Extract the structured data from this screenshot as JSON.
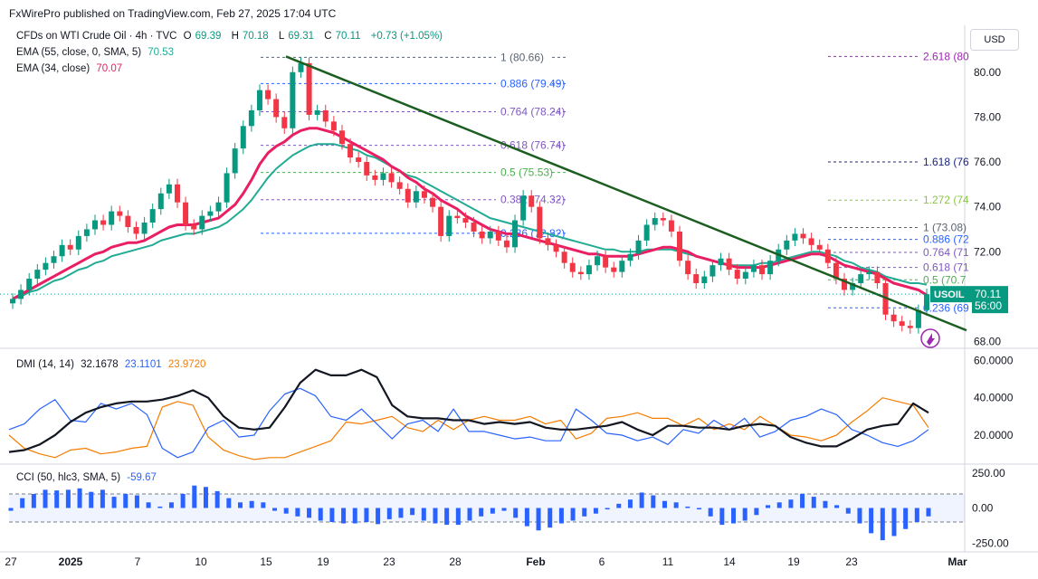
{
  "header": {
    "published": "FxWirePro published on TradingView.com, Feb 27, 2025 17:04 UTC"
  },
  "legend": {
    "symbol": "CFDs on WTI Crude Oil · 4h · TVC",
    "o_label": "O",
    "o": "69.39",
    "h_label": "H",
    "h": "70.18",
    "l_label": "L",
    "l": "69.31",
    "c_label": "C",
    "c": "70.11",
    "change": "+0.73 (+1.05%)",
    "ema55_label": "EMA (55, close, 0, SMA, 5)",
    "ema55": "70.53",
    "ema34_label": "EMA (34, close)",
    "ema34": "70.07",
    "dmi_label": "DMI (14, 14)",
    "dmi_adx": "32.1678",
    "dmi_plus": "23.1101",
    "dmi_minus": "23.9720",
    "cci_label": "CCI (50, hlc3, SMA, 5)",
    "cci": "-59.67"
  },
  "currency": "USD",
  "price_tag": {
    "symbol": "USOIL",
    "price": "70.11",
    "countdown": "56:00"
  },
  "colors": {
    "up": "#089981",
    "down": "#f23645",
    "ema34": "#e91e63",
    "ema55": "#22ab94",
    "trend": "#1b5e20",
    "adx": "#131722",
    "plus": "#2962ff",
    "minus": "#f57c00",
    "cci": "#2962ff",
    "axis": "#131722",
    "grid": "#e0e3eb"
  },
  "chart_data": {
    "type": "candlestick",
    "timeframe": "4h",
    "price_axis_ticks": [
      "80.00",
      "78.00",
      "76.00",
      "74.00",
      "72.00",
      "70.00",
      "68.00"
    ],
    "price_range": [
      67.9,
      81.2
    ],
    "time_axis_labels": [
      "27",
      "2025",
      "7",
      "10",
      "15",
      "19",
      "23",
      "28",
      "Feb",
      "6",
      "11",
      "14",
      "19",
      "23",
      "Mar"
    ],
    "close_series": [
      69.9,
      70.3,
      70.8,
      71.2,
      71.5,
      71.8,
      72.3,
      72.1,
      72.7,
      73.0,
      73.4,
      73.2,
      73.8,
      73.6,
      73.1,
      72.8,
      73.3,
      73.9,
      74.6,
      75.0,
      74.2,
      73.2,
      73.0,
      73.6,
      73.8,
      74.2,
      75.5,
      76.6,
      77.6,
      78.3,
      79.2,
      78.8,
      78.0,
      77.5,
      80.0,
      80.4,
      78.1,
      78.3,
      77.8,
      77.4,
      76.8,
      76.2,
      76.0,
      75.4,
      75.2,
      75.5,
      75.1,
      74.8,
      74.2,
      74.7,
      74.4,
      74.0,
      72.7,
      73.6,
      73.5,
      73.3,
      72.9,
      72.6,
      72.9,
      72.5,
      72.2,
      73.4,
      74.5,
      74.0,
      72.6,
      72.3,
      72.0,
      71.5,
      71.1,
      71.0,
      71.4,
      71.8,
      71.3,
      71.1,
      71.6,
      71.9,
      72.5,
      73.2,
      73.5,
      73.4,
      72.9,
      71.6,
      71.0,
      70.6,
      70.9,
      71.4,
      71.7,
      71.2,
      70.8,
      71.1,
      71.4,
      71.0,
      71.6,
      72.1,
      72.5,
      72.8,
      72.6,
      72.3,
      72.1,
      71.5,
      70.8,
      70.3,
      70.6,
      71.0,
      71.1,
      70.6,
      69.2,
      68.9,
      68.7,
      68.6,
      69.4,
      70.11
    ],
    "ema34_series": [
      69.9,
      70.1,
      70.3,
      70.5,
      70.7,
      70.9,
      71.1,
      71.3,
      71.5,
      71.7,
      71.9,
      72.0,
      72.2,
      72.3,
      72.4,
      72.4,
      72.5,
      72.7,
      72.9,
      73.1,
      73.2,
      73.2,
      73.2,
      73.3,
      73.4,
      73.5,
      73.8,
      74.1,
      74.6,
      75.2,
      75.9,
      76.4,
      76.7,
      76.9,
      77.2,
      77.4,
      77.5,
      77.5,
      77.4,
      77.3,
      77.1,
      76.9,
      76.7,
      76.5,
      76.3,
      76.1,
      75.8,
      75.6,
      75.3,
      75.1,
      74.8,
      74.6,
      74.3,
      74.1,
      73.9,
      73.6,
      73.4,
      73.2,
      73.0,
      72.9,
      72.8,
      72.8,
      72.7,
      72.6,
      72.5,
      72.4,
      72.3,
      72.2,
      72.1,
      72.0,
      71.9,
      71.9,
      71.8,
      71.8,
      71.8,
      71.8,
      71.9,
      72.0,
      72.1,
      72.2,
      72.2,
      72.1,
      72.0,
      71.8,
      71.7,
      71.6,
      71.5,
      71.4,
      71.3,
      71.3,
      71.3,
      71.3,
      71.4,
      71.5,
      71.6,
      71.7,
      71.8,
      71.9,
      71.9,
      71.8,
      71.6,
      71.4,
      71.3,
      71.2,
      71.1,
      71.0,
      70.8,
      70.6,
      70.5,
      70.4,
      70.3,
      70.07
    ],
    "ema55_series": [
      69.9,
      70.0,
      70.2,
      70.3,
      70.5,
      70.7,
      70.8,
      71.0,
      71.2,
      71.3,
      71.5,
      71.6,
      71.8,
      71.9,
      72.0,
      72.1,
      72.2,
      72.3,
      72.5,
      72.6,
      72.7,
      72.8,
      72.8,
      72.9,
      73.0,
      73.1,
      73.3,
      73.6,
      73.9,
      74.3,
      74.8,
      75.3,
      75.7,
      76.0,
      76.3,
      76.5,
      76.7,
      76.8,
      76.8,
      76.8,
      76.7,
      76.6,
      76.5,
      76.3,
      76.2,
      76.0,
      75.8,
      75.6,
      75.4,
      75.3,
      75.1,
      74.9,
      74.7,
      74.5,
      74.3,
      74.1,
      73.9,
      73.7,
      73.5,
      73.4,
      73.3,
      73.2,
      73.1,
      73.0,
      72.9,
      72.8,
      72.7,
      72.6,
      72.5,
      72.4,
      72.3,
      72.2,
      72.1,
      72.1,
      72.0,
      72.0,
      72.0,
      72.1,
      72.1,
      72.1,
      72.1,
      72.0,
      71.9,
      71.8,
      71.7,
      71.6,
      71.5,
      71.4,
      71.4,
      71.4,
      71.4,
      71.5,
      71.5,
      71.6,
      71.7,
      71.8,
      71.9,
      72.0,
      72.0,
      71.9,
      71.8,
      71.6,
      71.5,
      71.3,
      71.2,
      71.1,
      70.9,
      70.8,
      70.7,
      70.6,
      70.6,
      70.53
    ],
    "trendline": {
      "start_price": 80.7,
      "end_price": 68.5
    },
    "fib_left": [
      {
        "label": "1 (80.66)",
        "value": 80.66,
        "color": "#5b6370"
      },
      {
        "label": "0.886 (79.49)",
        "value": 79.49,
        "color": "#2962ff"
      },
      {
        "label": "0.764 (78.24)",
        "value": 78.24,
        "color": "#7e57c2"
      },
      {
        "label": "0.618 (76.74)",
        "value": 76.74,
        "color": "#7e57c2"
      },
      {
        "label": "0.5 (75.53)",
        "value": 75.53,
        "color": "#4caf50"
      },
      {
        "label": "0.382 (74.32)",
        "value": 74.32,
        "color": "#7e57c2"
      },
      {
        "label": "0.236 (72.82)",
        "value": 72.82,
        "color": "#2962ff"
      }
    ],
    "fib_right": [
      {
        "label": "2.618 (80",
        "value": 80.7,
        "color": "#9c27b0"
      },
      {
        "label": "1.618 (76",
        "value": 76.0,
        "color": "#1a237e"
      },
      {
        "label": "1.272 (74",
        "value": 74.3,
        "color": "#8bc34a"
      },
      {
        "label": "1 (73.08)",
        "value": 73.08,
        "color": "#5b6370"
      },
      {
        "label": "0.886 (72",
        "value": 72.55,
        "color": "#2962ff"
      },
      {
        "label": "0.764 (71",
        "value": 71.97,
        "color": "#7e57c2"
      },
      {
        "label": "0.618 (71",
        "value": 71.3,
        "color": "#7e57c2"
      },
      {
        "label": "0.5 (70.7",
        "value": 70.75,
        "color": "#4caf50"
      },
      {
        "label": "0.236 (69",
        "value": 69.5,
        "color": "#2962ff"
      }
    ],
    "dmi": {
      "axis_ticks": [
        "60.0000",
        "40.0000",
        "20.0000"
      ],
      "range": [
        5,
        65
      ],
      "adx": [
        11,
        12,
        15,
        20,
        27,
        32,
        35,
        37,
        38,
        38,
        39,
        41,
        44,
        40,
        30,
        24,
        23,
        24,
        35,
        48,
        55,
        52,
        52,
        55,
        51,
        36,
        30,
        29,
        29,
        28,
        28,
        26,
        27,
        26,
        27,
        24,
        23,
        23,
        24,
        25,
        27,
        23,
        20,
        25,
        25,
        24,
        24,
        23,
        25,
        26,
        25,
        19,
        16,
        14,
        14,
        18,
        23,
        25,
        26,
        37,
        32
      ],
      "plus": [
        23,
        26,
        34,
        39,
        28,
        27,
        37,
        34,
        37,
        31,
        13,
        8,
        11,
        24,
        28,
        19,
        20,
        33,
        42,
        45,
        41,
        30,
        28,
        34,
        26,
        18,
        26,
        28,
        22,
        34,
        22,
        22,
        20,
        18,
        19,
        17,
        17,
        34,
        28,
        21,
        20,
        17,
        19,
        15,
        23,
        21,
        28,
        23,
        29,
        19,
        22,
        28,
        30,
        34,
        31,
        23,
        20,
        16,
        14,
        17,
        23
      ],
      "minus": [
        20,
        13,
        10,
        8,
        12,
        13,
        10,
        11,
        13,
        14,
        35,
        38,
        36,
        19,
        12,
        9,
        7,
        8,
        8,
        11,
        14,
        17,
        27,
        26,
        28,
        30,
        24,
        22,
        28,
        23,
        28,
        30,
        28,
        28,
        30,
        26,
        28,
        18,
        21,
        29,
        30,
        32,
        29,
        29,
        25,
        29,
        23,
        26,
        23,
        30,
        25,
        20,
        19,
        17,
        20,
        27,
        33,
        40,
        38,
        36,
        24
      ]
    },
    "cci": {
      "axis_ticks": [
        "250.00",
        "0.00",
        "-250.00"
      ],
      "range": [
        -300,
        300
      ],
      "band": [
        100,
        -100
      ],
      "values": [
        -20,
        70,
        100,
        130,
        125,
        130,
        140,
        115,
        130,
        80,
        100,
        90,
        40,
        10,
        40,
        100,
        160,
        150,
        120,
        70,
        40,
        50,
        40,
        -20,
        -40,
        -60,
        -70,
        -90,
        -100,
        -110,
        -110,
        -100,
        -115,
        -80,
        -70,
        -50,
        -90,
        -110,
        -120,
        -120,
        -90,
        -60,
        -40,
        -20,
        -70,
        -130,
        -160,
        -140,
        -110,
        -90,
        -60,
        -40,
        -10,
        30,
        60,
        110,
        90,
        50,
        40,
        10,
        -10,
        -60,
        -120,
        -110,
        -90,
        -50,
        20,
        40,
        60,
        100,
        80,
        50,
        20,
        -40,
        -110,
        -180,
        -230,
        -200,
        -150,
        -100,
        -59.67
      ]
    }
  }
}
